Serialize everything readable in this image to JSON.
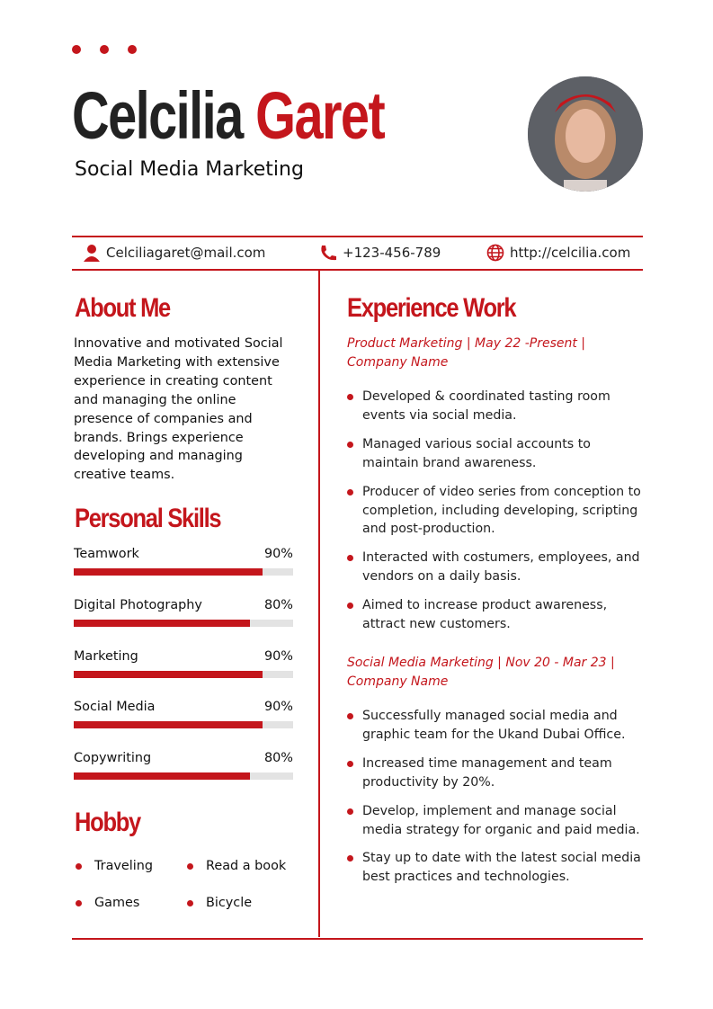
{
  "accent": "#c4161c",
  "header": {
    "first_name": "Celcilia",
    "last_name": "Garet",
    "subtitle": "Social Media Marketing"
  },
  "contact": {
    "email": "Celciliagaret@mail.com",
    "phone": "+123-456-789",
    "website": "http://celcilia.com"
  },
  "about": {
    "title": "About Me",
    "text": "Innovative and motivated Social Media Marketing with extensive experience in creating content and managing the online presence of companies and brands. Brings experience developing and managing creative teams."
  },
  "skills": {
    "title": "Personal Skills",
    "items": [
      {
        "label": "Teamwork",
        "value": "90%",
        "level": 90
      },
      {
        "label": "Digital Photography",
        "value": "80%",
        "level": 80
      },
      {
        "label": "Marketing",
        "value": "90%",
        "level": 90
      },
      {
        "label": "Social Media",
        "value": "90%",
        "level": 90
      },
      {
        "label": "Copywriting",
        "value": "80%",
        "level": 80
      }
    ]
  },
  "hobby": {
    "title": "Hobby",
    "items": [
      "Traveling",
      "Read a book",
      "Games",
      "Bicycle"
    ]
  },
  "experience": {
    "title": "Experience Work",
    "jobs": [
      {
        "role": "Product Marketing | May 22 -Present | Company Name",
        "items": [
          "Developed & coordinated tasting room events via social media.",
          "Managed various social accounts to maintain brand awareness.",
          "Producer of video series from conception to completion, including developing, scripting and post-production.",
          "Interacted with costumers, employees, and vendors on a daily basis.",
          "Aimed to increase product awareness, attract new customers."
        ]
      },
      {
        "role": "Social Media Marketing | Nov 20 - Mar 23 | Company Name",
        "items": [
          "Successfully managed social media and graphic team for the Ukand Dubai Office.",
          "Increased time management and team productivity by 20%.",
          "Develop, implement and manage social media strategy for organic and paid media.",
          "Stay up to date with the latest social media best practices and technologies."
        ]
      }
    ]
  }
}
